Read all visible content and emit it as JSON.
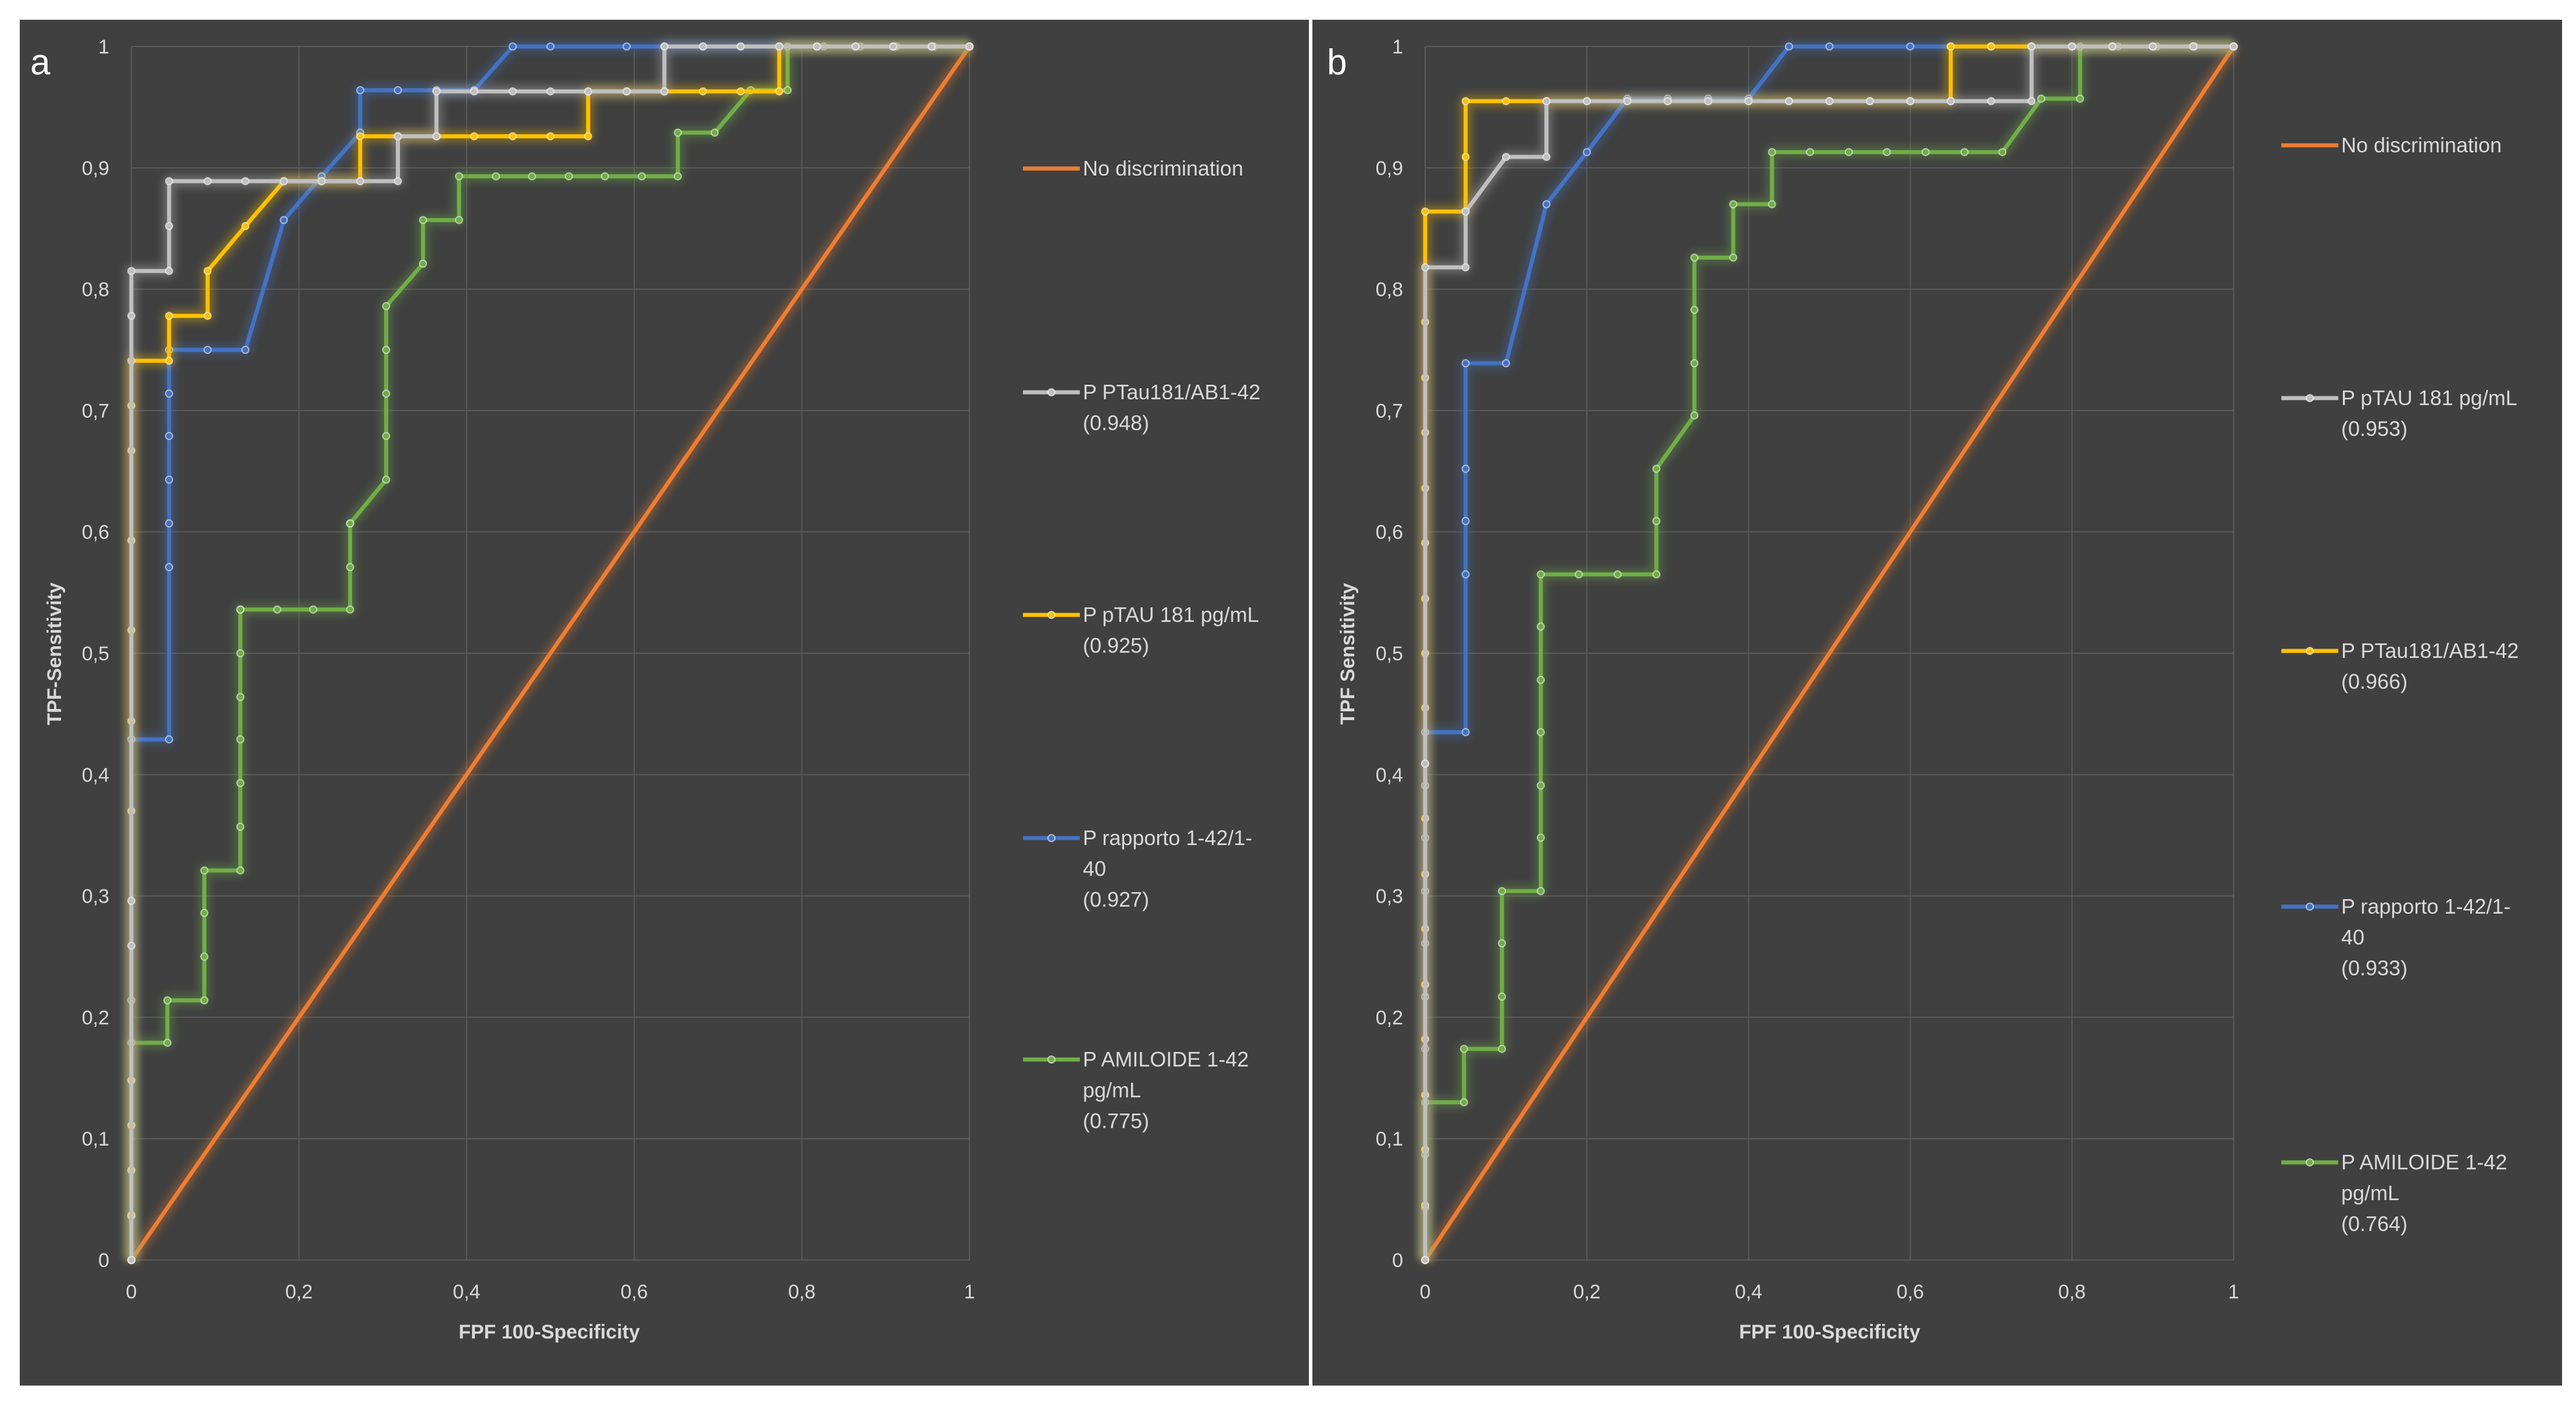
{
  "chart_data": [
    {
      "type": "line",
      "panel_label": "a",
      "xlabel": "FPF 100-Specificity",
      "ylabel": "TPF-Sensitivity",
      "xlim": [
        0,
        1
      ],
      "ylim": [
        0,
        1
      ],
      "xticks": [
        "0",
        "0,2",
        "0,4",
        "0,6",
        "0,8",
        "1"
      ],
      "yticks": [
        "0",
        "0,1",
        "0,2",
        "0,3",
        "0,4",
        "0,5",
        "0,6",
        "0,7",
        "0,8",
        "0,9",
        "1"
      ],
      "grid": true,
      "legend_position": "right",
      "series": [
        {
          "name": "No discrimination",
          "color": "#ed7d31",
          "markers": false,
          "legend": [
            "No discrimination"
          ],
          "x": [
            0,
            1
          ],
          "y": [
            0,
            1
          ]
        },
        {
          "name": "P AMILOIDE 1-42 pg/mL (0.775)",
          "color": "#70ad47",
          "markers": true,
          "legend": [
            "P AMILOIDE 1-42",
            "pg/mL",
            "(0.775)"
          ],
          "x": [
            0,
            0,
            0,
            0.043,
            0.043,
            0.087,
            0.087,
            0.087,
            0.087,
            0.13,
            0.13,
            0.13,
            0.13,
            0.13,
            0.13,
            0.13,
            0.13,
            0.174,
            0.217,
            0.261,
            0.261,
            0.261,
            0.261,
            0.304,
            0.304,
            0.304,
            0.304,
            0.304,
            0.348,
            0.348,
            0.391,
            0.391,
            0.435,
            0.478,
            0.522,
            0.565,
            0.609,
            0.652,
            0.652,
            0.696,
            0.739,
            0.783,
            0.783,
            0.826,
            0.87,
            0.913,
            0.957,
            1
          ],
          "y": [
            0,
            0.036,
            0.179,
            0.179,
            0.214,
            0.214,
            0.25,
            0.286,
            0.321,
            0.321,
            0.357,
            0.393,
            0.429,
            0.464,
            0.5,
            0.536,
            0.536,
            0.536,
            0.536,
            0.536,
            0.571,
            0.607,
            0.607,
            0.643,
            0.679,
            0.714,
            0.75,
            0.786,
            0.821,
            0.857,
            0.857,
            0.893,
            0.893,
            0.893,
            0.893,
            0.893,
            0.893,
            0.893,
            0.929,
            0.929,
            0.964,
            0.964,
            1,
            1,
            1,
            1,
            1,
            1
          ]
        },
        {
          "name": "P rapporto 1-42/1-40 (0.927)",
          "color": "#4472c4",
          "markers": true,
          "legend": [
            "P rapporto 1-42/1-",
            "40",
            "(0.927)"
          ],
          "x": [
            0,
            0,
            0,
            0.045,
            0.045,
            0.045,
            0.045,
            0.045,
            0.045,
            0.045,
            0.091,
            0.136,
            0.182,
            0.227,
            0.273,
            0.273,
            0.318,
            0.364,
            0.409,
            0.455,
            0.5,
            0.591,
            0.636,
            0.682,
            0.727,
            0.773,
            0.818,
            0.864,
            0.909,
            0.955,
            1
          ],
          "y": [
            0,
            0.214,
            0.429,
            0.429,
            0.571,
            0.607,
            0.643,
            0.679,
            0.714,
            0.75,
            0.75,
            0.75,
            0.857,
            0.893,
            0.929,
            0.964,
            0.964,
            0.964,
            0.964,
            1,
            1,
            1,
            1,
            1,
            1,
            1,
            1,
            1,
            1,
            1,
            1
          ]
        },
        {
          "name": "P pTAU 181 pg/mL (0.925)",
          "color": "#ffc000",
          "markers": true,
          "legend": [
            "P pTAU 181 pg/mL",
            "(0.925)"
          ],
          "x": [
            0,
            0,
            0,
            0,
            0,
            0,
            0,
            0,
            0,
            0,
            0,
            0,
            0.045,
            0.045,
            0.091,
            0.091,
            0.136,
            0.182,
            0.227,
            0.273,
            0.273,
            0.318,
            0.364,
            0.409,
            0.455,
            0.5,
            0.545,
            0.545,
            0.591,
            0.636,
            0.682,
            0.727,
            0.773,
            0.773,
            0.818,
            0.864,
            0.909,
            0.955,
            1
          ],
          "y": [
            0,
            0.037,
            0.074,
            0.111,
            0.148,
            0.37,
            0.444,
            0.519,
            0.593,
            0.667,
            0.704,
            0.741,
            0.741,
            0.778,
            0.778,
            0.815,
            0.852,
            0.889,
            0.889,
            0.889,
            0.926,
            0.926,
            0.926,
            0.926,
            0.926,
            0.926,
            0.926,
            0.963,
            0.963,
            0.963,
            0.963,
            0.963,
            0.963,
            1,
            1,
            1,
            1,
            1,
            1
          ]
        },
        {
          "name": "P PTau181/AB1-42 (0.948)",
          "color": "#bfbfbf",
          "markers": true,
          "legend": [
            "P PTau181/AB1-42",
            "(0.948)"
          ],
          "x": [
            0,
            0,
            0,
            0,
            0,
            0.045,
            0.045,
            0.045,
            0.091,
            0.136,
            0.182,
            0.227,
            0.273,
            0.318,
            0.318,
            0.364,
            0.364,
            0.409,
            0.455,
            0.5,
            0.545,
            0.591,
            0.636,
            0.636,
            0.682,
            0.727,
            0.773,
            0.818,
            0.864,
            0.909,
            0.955,
            1
          ],
          "y": [
            0,
            0.259,
            0.296,
            0.778,
            0.815,
            0.815,
            0.852,
            0.889,
            0.889,
            0.889,
            0.889,
            0.889,
            0.889,
            0.889,
            0.926,
            0.926,
            0.963,
            0.963,
            0.963,
            0.963,
            0.963,
            0.963,
            0.963,
            1,
            1,
            1,
            1,
            1,
            1,
            1,
            1,
            1
          ]
        }
      ]
    },
    {
      "type": "line",
      "panel_label": "b",
      "xlabel": "FPF 100-Specificity",
      "ylabel": "TPF Sensitivity",
      "xlim": [
        0,
        1
      ],
      "ylim": [
        0,
        1
      ],
      "xticks": [
        "0",
        "0,2",
        "0,4",
        "0,6",
        "0,8",
        "1"
      ],
      "yticks": [
        "0",
        "0,1",
        "0,2",
        "0,3",
        "0,4",
        "0,5",
        "0,6",
        "0,7",
        "0,8",
        "0,9",
        "1"
      ],
      "grid": true,
      "legend_position": "right",
      "series": [
        {
          "name": "No discrimination",
          "color": "#ed7d31",
          "markers": false,
          "legend": [
            "No discrimination"
          ],
          "x": [
            0,
            1
          ],
          "y": [
            0,
            1
          ]
        },
        {
          "name": "P AMILOIDE 1-42 pg/mL (0.764)",
          "color": "#70ad47",
          "markers": true,
          "legend": [
            "P AMILOIDE 1-42",
            "pg/mL",
            "(0.764)"
          ],
          "x": [
            0,
            0,
            0,
            0,
            0.048,
            0.048,
            0.095,
            0.095,
            0.095,
            0.095,
            0.143,
            0.143,
            0.143,
            0.143,
            0.143,
            0.143,
            0.143,
            0.19,
            0.238,
            0.286,
            0.286,
            0.286,
            0.333,
            0.333,
            0.333,
            0.333,
            0.381,
            0.381,
            0.429,
            0.429,
            0.476,
            0.524,
            0.571,
            0.619,
            0.667,
            0.714,
            0.762,
            0.81,
            0.81,
            0.857,
            0.905,
            0.952,
            1
          ],
          "y": [
            0,
            0.043,
            0.087,
            0.13,
            0.13,
            0.174,
            0.174,
            0.217,
            0.261,
            0.304,
            0.304,
            0.348,
            0.391,
            0.435,
            0.478,
            0.522,
            0.565,
            0.565,
            0.565,
            0.565,
            0.609,
            0.652,
            0.696,
            0.739,
            0.783,
            0.826,
            0.826,
            0.87,
            0.87,
            0.913,
            0.913,
            0.913,
            0.913,
            0.913,
            0.913,
            0.913,
            0.957,
            0.957,
            1,
            1,
            1,
            1,
            1
          ]
        },
        {
          "name": "P rapporto 1-42/1-40 (0.933)",
          "color": "#4472c4",
          "markers": true,
          "legend": [
            "P rapporto 1-42/1-",
            "40",
            "(0.933)"
          ],
          "x": [
            0,
            0,
            0,
            0,
            0,
            0,
            0,
            0,
            0.05,
            0.05,
            0.05,
            0.05,
            0.05,
            0.1,
            0.15,
            0.2,
            0.25,
            0.3,
            0.35,
            0.4,
            0.45,
            0.5,
            0.6,
            0.65,
            0.7,
            0.75,
            0.8,
            0.85,
            0.9,
            0.95,
            1
          ],
          "y": [
            0,
            0.174,
            0.217,
            0.261,
            0.304,
            0.348,
            0.391,
            0.435,
            0.435,
            0.565,
            0.609,
            0.652,
            0.739,
            0.739,
            0.87,
            0.913,
            0.957,
            0.957,
            0.957,
            0.957,
            1,
            1,
            1,
            1,
            1,
            1,
            1,
            1,
            1,
            1,
            1
          ]
        },
        {
          "name": "P PTau181/AB1-42 (0.966)",
          "color": "#ffc000",
          "markers": true,
          "legend": [
            "P PTau181/AB1-42",
            "(0.966)"
          ],
          "x": [
            0,
            0,
            0,
            0,
            0,
            0,
            0,
            0,
            0,
            0,
            0,
            0,
            0,
            0,
            0,
            0,
            0,
            0,
            0,
            0.05,
            0.05,
            0.05,
            0.1,
            0.15,
            0.2,
            0.25,
            0.3,
            0.35,
            0.4,
            0.45,
            0.5,
            0.55,
            0.6,
            0.65,
            0.65,
            0.7,
            0.75,
            0.8,
            0.85,
            0.9,
            0.95,
            1
          ],
          "y": [
            0,
            0.045,
            0.091,
            0.136,
            0.182,
            0.227,
            0.273,
            0.318,
            0.364,
            0.409,
            0.455,
            0.5,
            0.545,
            0.591,
            0.636,
            0.682,
            0.727,
            0.773,
            0.864,
            0.864,
            0.909,
            0.955,
            0.955,
            0.955,
            0.955,
            0.955,
            0.955,
            0.955,
            0.955,
            0.955,
            0.955,
            0.955,
            0.955,
            0.955,
            1,
            1,
            1,
            1,
            1,
            1,
            1,
            1
          ]
        },
        {
          "name": "P pTAU 181 pg/mL (0.953)",
          "color": "#bfbfbf",
          "markers": true,
          "legend": [
            "P pTAU 181 pg/mL",
            "(0.953)"
          ],
          "x": [
            0,
            0,
            0,
            0.05,
            0.05,
            0.1,
            0.15,
            0.15,
            0.2,
            0.25,
            0.3,
            0.35,
            0.4,
            0.45,
            0.5,
            0.55,
            0.6,
            0.65,
            0.7,
            0.75,
            0.75,
            0.8,
            0.85,
            0.9,
            0.95,
            1
          ],
          "y": [
            0,
            0.409,
            0.818,
            0.818,
            0.864,
            0.909,
            0.909,
            0.955,
            0.955,
            0.955,
            0.955,
            0.955,
            0.955,
            0.955,
            0.955,
            0.955,
            0.955,
            0.955,
            0.955,
            0.955,
            1,
            1,
            1,
            1,
            1,
            1
          ]
        }
      ]
    }
  ]
}
